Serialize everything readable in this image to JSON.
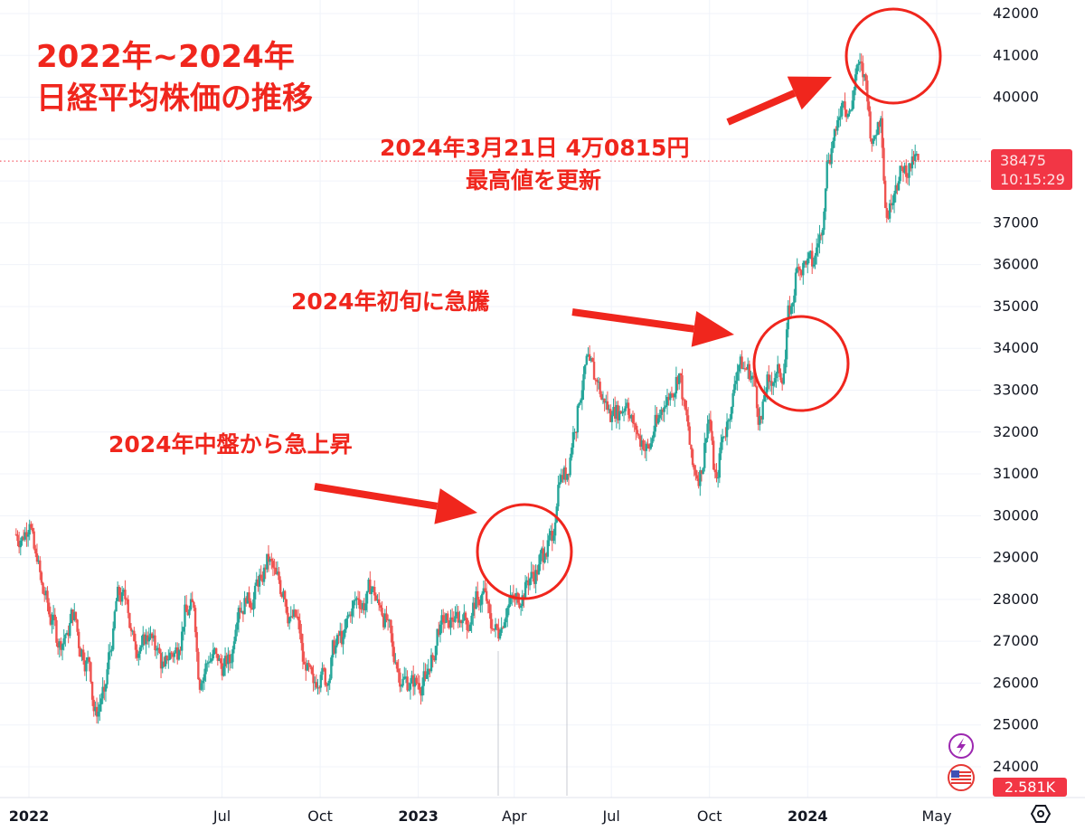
{
  "title_lines": [
    "2022年~2024年",
    "日経平均株価の推移"
  ],
  "annotations": {
    "peak_line1": "2024年3月21日 4万0815円",
    "peak_line2": "最高値を更新",
    "early_2024": "2024年初旬に急騰",
    "mid_2024": "2024年中盤から急上昇"
  },
  "price_label": {
    "price": "38475",
    "countdown": "10:15:29"
  },
  "volume_label": "2.581K",
  "colors": {
    "up": "#26a69a",
    "down": "#ef5350",
    "annotation": "#f0261d",
    "price_line": "#f23645"
  },
  "icons": [
    "lightning-icon",
    "us-flag-icon",
    "settings-hexagon-icon"
  ],
  "chart_data": {
    "type": "candlestick",
    "title": "日経平均株価の推移",
    "frequency": "weekly (approximate closes)",
    "x_tick_labels": [
      "2022",
      "Jul",
      "Oct",
      "2023",
      "Apr",
      "Jul",
      "Oct",
      "2024",
      "May"
    ],
    "x_tick_dates": [
      "2022-01",
      "2022-07",
      "2022-10",
      "2023-01",
      "2023-04",
      "2023-07",
      "2023-10",
      "2024-01",
      "2024-05"
    ],
    "ylim": [
      24000,
      42000
    ],
    "y_ticks": [
      24000,
      25000,
      26000,
      27000,
      28000,
      29000,
      30000,
      31000,
      32000,
      33000,
      34000,
      35000,
      36000,
      37000,
      38000,
      39000,
      40000,
      41000,
      42000
    ],
    "grid": true,
    "start_date": "2021-12-20",
    "closes": [
      29500,
      29800,
      28900,
      28100,
      27500,
      27000,
      27200,
      27700,
      26800,
      26500,
      25200,
      25800,
      26800,
      28100,
      28000,
      27000,
      26900,
      27100,
      26800,
      26400,
      26700,
      26800,
      27700,
      27800,
      26000,
      26500,
      26700,
      26400,
      26500,
      27800,
      27900,
      28000,
      28500,
      28900,
      28600,
      28200,
      27600,
      27500,
      26300,
      26000,
      26200,
      26000,
      26900,
      27100,
      27600,
      28000,
      27900,
      28300,
      27800,
      27500,
      26500,
      26100,
      26000,
      26000,
      26100,
      26600,
      27400,
      27500,
      27600,
      27500,
      27400,
      28000,
      28200,
      27300,
      27200,
      27800,
      28000,
      28100,
      28500,
      28600,
      29100,
      29400,
      30800,
      31000,
      32000,
      33000,
      33700,
      33200,
      32700,
      32400,
      32500,
      32700,
      32200,
      31800,
      31600,
      32200,
      32600,
      32900,
      33400,
      32400,
      31100,
      31000,
      32300,
      30900,
      31900,
      32600,
      33600,
      33500,
      33300,
      32300,
      33200,
      33400,
      33400,
      35000,
      35900,
      36000,
      36000,
      36700,
      38500,
      39200,
      39900,
      39700,
      40800,
      40400,
      39000,
      39500,
      37100,
      37900,
      38200,
      38300,
      38500
    ],
    "last_price": 38475,
    "all_time_high": {
      "date": "2024-03-21",
      "value": 40815
    }
  }
}
